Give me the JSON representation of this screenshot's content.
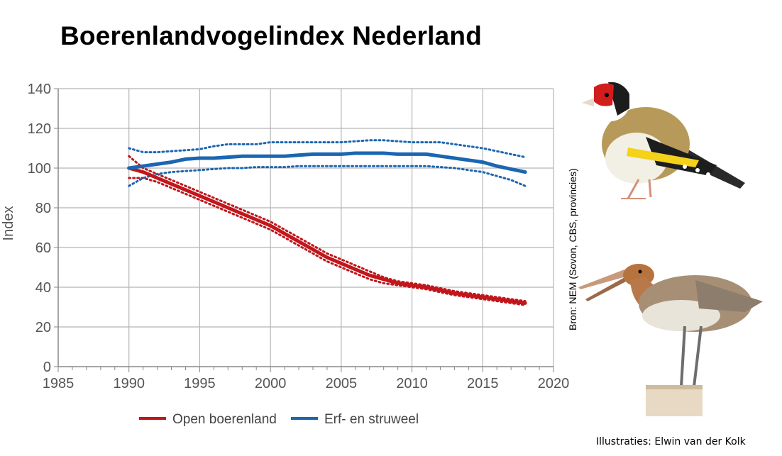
{
  "title": "Boerenlandvogelindex Nederland",
  "source": "Bron: NEM (Sovon, CBS, provincies)",
  "credits": "Illustraties: Elwin van der Kolk",
  "illustrations": [
    {
      "name": "goldfinch-illustration"
    },
    {
      "name": "godwit-illustration"
    }
  ],
  "chart_data": {
    "type": "line",
    "ylabel": "Index",
    "xlabel": "",
    "xlim": [
      1985,
      2020
    ],
    "ylim": [
      0,
      140
    ],
    "xticks": [
      1985,
      1990,
      1995,
      2000,
      2005,
      2010,
      2015,
      2020
    ],
    "yticks": [
      0,
      20,
      40,
      60,
      80,
      100,
      120,
      140
    ],
    "grid": true,
    "legend": "bottom",
    "x": [
      1990,
      1991,
      1992,
      1993,
      1994,
      1995,
      1996,
      1997,
      1998,
      1999,
      2000,
      2001,
      2002,
      2003,
      2004,
      2005,
      2006,
      2007,
      2008,
      2009,
      2010,
      2011,
      2012,
      2013,
      2014,
      2015,
      2016,
      2017,
      2018
    ],
    "series": [
      {
        "name": "Open boerenland",
        "color": "#c0171c",
        "values": [
          100,
          98,
          95,
          92,
          89,
          86,
          83,
          80,
          77,
          74,
          71,
          67,
          63,
          59,
          55,
          52,
          49,
          46,
          44,
          42,
          41,
          40,
          38.5,
          37,
          36,
          35,
          34,
          33,
          32
        ],
        "upper": [
          106,
          100,
          97,
          94,
          91,
          88,
          85,
          82,
          79,
          76,
          73,
          69,
          65,
          61,
          57,
          54,
          51,
          48,
          45,
          43,
          42,
          41,
          39.5,
          38,
          37,
          36,
          35,
          34,
          33
        ],
        "lower": [
          95,
          95,
          93,
          90,
          87,
          84,
          81,
          78,
          75,
          72,
          69,
          65,
          61,
          57,
          53,
          50,
          47,
          44,
          42,
          41,
          40,
          39,
          37.5,
          36,
          35,
          34,
          33,
          32,
          31
        ]
      },
      {
        "name": "Erf- en struweel",
        "color": "#1b66b1",
        "values": [
          100,
          101,
          102,
          103,
          104.5,
          105,
          105,
          105.5,
          106,
          106,
          106,
          106,
          106.5,
          107,
          107,
          107,
          107.5,
          107.5,
          107.5,
          107,
          107,
          107,
          106,
          105,
          104,
          103,
          101,
          99.5,
          98
        ],
        "upper": [
          110,
          108,
          108,
          108.5,
          109,
          109.5,
          111,
          112,
          112,
          112,
          113,
          113,
          113,
          113,
          113,
          113,
          113.5,
          114,
          114,
          113.5,
          113,
          113,
          113,
          112,
          111,
          110,
          108.5,
          107,
          105.5
        ],
        "lower": [
          91,
          95,
          97,
          98,
          98.5,
          99,
          99.5,
          100,
          100,
          100.5,
          100.5,
          100.5,
          101,
          101,
          101,
          101,
          101,
          101,
          101,
          101,
          101,
          101,
          100.5,
          100,
          99,
          98,
          96,
          94,
          91
        ]
      }
    ]
  }
}
